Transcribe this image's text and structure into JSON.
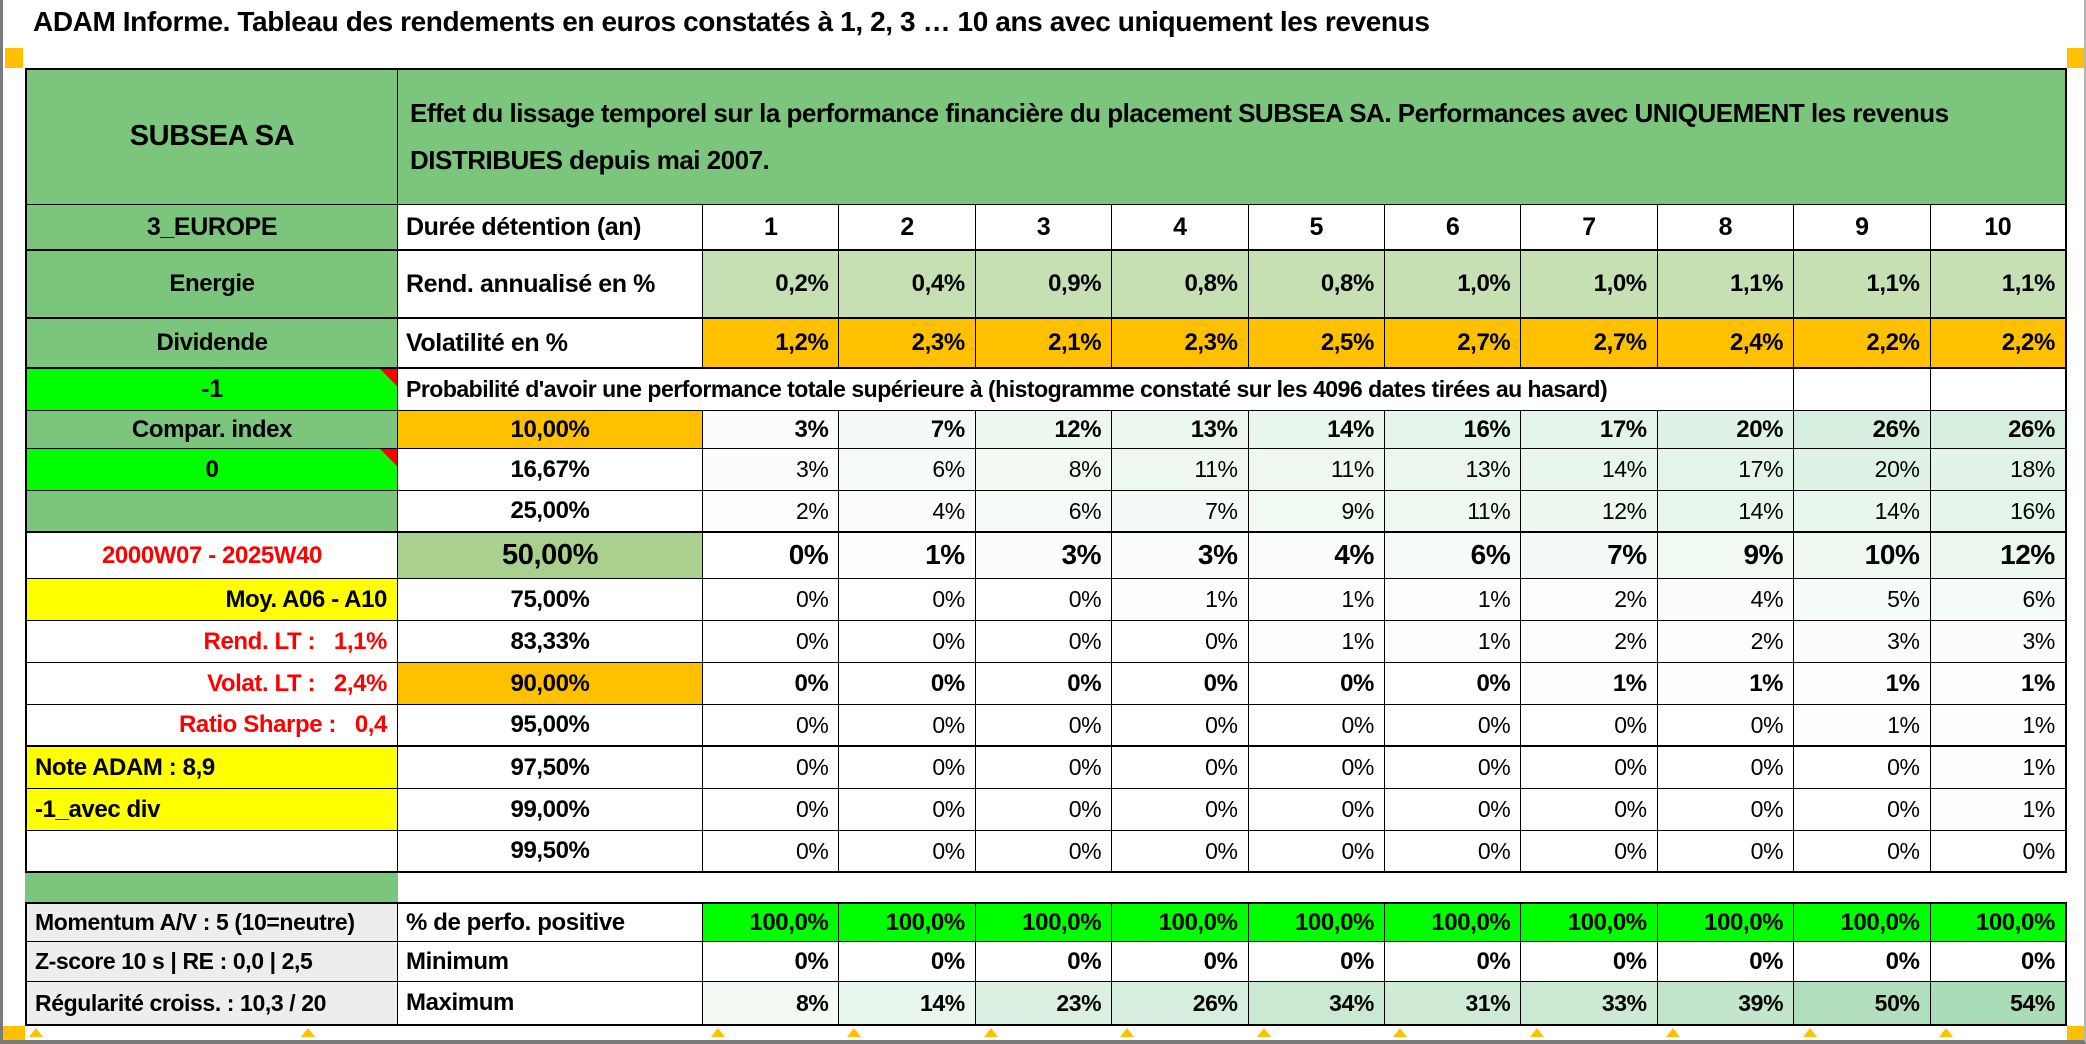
{
  "title": "ADAM Informe. Tableau des rendements en euros constatés à 1, 2, 3 … 10 ans avec uniquement les revenus",
  "entity": {
    "name": "SUBSEA SA",
    "description": "Effet du lissage temporel sur la performance financière du placement SUBSEA SA. Performances avec UNIQUEMENT les revenus\nDISTRIBUES depuis mai 2007."
  },
  "palette": {
    "green": "#7CC57C",
    "light_green": "#C6E0B4",
    "mid_green": "#A9D08E",
    "bright_green": "#00FF00",
    "orange": "#FFC000",
    "yellow": "#FFFF00",
    "gray_label": "#EDEDED",
    "red_text": "#FF0000",
    "scale_green": "#63BE7B"
  },
  "table": {
    "col_a_header": "3_EUROPE",
    "duration_label": "Durée détention (an)",
    "columns": [
      "1",
      "2",
      "3",
      "4",
      "5",
      "6",
      "7",
      "8",
      "9",
      "10"
    ],
    "rend_row": {
      "a": "Energie",
      "label": "Rend. annualisé en %",
      "values": [
        "0,2%",
        "0,4%",
        "0,9%",
        "0,8%",
        "0,8%",
        "1,0%",
        "1,0%",
        "1,1%",
        "1,1%",
        "1,1%"
      ]
    },
    "volat_row": {
      "a": "Dividende",
      "label": "Volatilité en %",
      "values": [
        "1,2%",
        "2,3%",
        "2,1%",
        "2,3%",
        "2,5%",
        "2,7%",
        "2,7%",
        "2,4%",
        "2,2%",
        "2,2%"
      ]
    },
    "prob_header_row": {
      "a": "-1",
      "text": "Probabilité d'avoir une performance totale supérieure à (histogramme constaté sur les 4096 dates tirées au hasard)"
    },
    "prob_rows": [
      {
        "a": "Compar. index",
        "a_style": "green",
        "t": "10,00%",
        "t_style": "orange",
        "bold": true,
        "values": [
          "3%",
          "7%",
          "12%",
          "13%",
          "14%",
          "16%",
          "17%",
          "20%",
          "26%",
          "26%"
        ]
      },
      {
        "a": "0",
        "a_style": "bright",
        "t": "16,67%",
        "t_style": "plain",
        "bold": false,
        "values": [
          "3%",
          "6%",
          "8%",
          "11%",
          "11%",
          "13%",
          "14%",
          "17%",
          "20%",
          "18%"
        ]
      },
      {
        "a": "",
        "a_style": "green",
        "t": "25,00%",
        "t_style": "plain",
        "bold": false,
        "thick": true,
        "values": [
          "2%",
          "4%",
          "6%",
          "7%",
          "9%",
          "11%",
          "12%",
          "14%",
          "14%",
          "16%"
        ]
      },
      {
        "a": "2000W07 - 2025W40",
        "a_style": "red-center",
        "t": "50,00%",
        "t_style": "mid",
        "bold": true,
        "big": true,
        "values": [
          "0%",
          "1%",
          "3%",
          "3%",
          "4%",
          "6%",
          "7%",
          "9%",
          "10%",
          "12%"
        ]
      },
      {
        "a": "Moy. A06 - A10",
        "a_style": "yellow-right",
        "t": "75,00%",
        "t_style": "plain",
        "bold": false,
        "values": [
          "0%",
          "0%",
          "0%",
          "1%",
          "1%",
          "1%",
          "2%",
          "4%",
          "5%",
          "6%"
        ]
      },
      {
        "a": "Rend. LT :   1,1%",
        "a_style": "red-right",
        "t": "83,33%",
        "t_style": "plain",
        "bold": false,
        "values": [
          "0%",
          "0%",
          "0%",
          "0%",
          "1%",
          "1%",
          "2%",
          "2%",
          "3%",
          "3%"
        ]
      },
      {
        "a": "Volat. LT :   2,4%",
        "a_style": "red-right",
        "t": "90,00%",
        "t_style": "orange",
        "bold": true,
        "values": [
          "0%",
          "0%",
          "0%",
          "0%",
          "0%",
          "0%",
          "1%",
          "1%",
          "1%",
          "1%"
        ]
      },
      {
        "a": "Ratio Sharpe :   0,4",
        "a_style": "red-right",
        "t": "95,00%",
        "t_style": "plain",
        "bold": false,
        "thick": true,
        "values": [
          "0%",
          "0%",
          "0%",
          "0%",
          "0%",
          "0%",
          "0%",
          "0%",
          "1%",
          "1%"
        ]
      },
      {
        "a": "Note ADAM : 8,9",
        "a_style": "yellow-left",
        "t": "97,50%",
        "t_style": "plain",
        "bold": false,
        "values": [
          "0%",
          "0%",
          "0%",
          "0%",
          "0%",
          "0%",
          "0%",
          "0%",
          "0%",
          "1%"
        ]
      },
      {
        "a": "-1_avec div",
        "a_style": "yellow-left",
        "t": "99,00%",
        "t_style": "plain",
        "bold": false,
        "values": [
          "0%",
          "0%",
          "0%",
          "0%",
          "0%",
          "0%",
          "0%",
          "0%",
          "0%",
          "1%"
        ]
      },
      {
        "a": "",
        "a_style": "plain",
        "t": "99,50%",
        "t_style": "plain",
        "bold": false,
        "values": [
          "0%",
          "0%",
          "0%",
          "0%",
          "0%",
          "0%",
          "0%",
          "0%",
          "0%",
          "0%"
        ]
      }
    ],
    "summary_rows": [
      {
        "a": "Momentum A/V : 5 (10=neutre)",
        "b": "% de perfo. positive",
        "style": "bright",
        "values": [
          "100,0%",
          "100,0%",
          "100,0%",
          "100,0%",
          "100,0%",
          "100,0%",
          "100,0%",
          "100,0%",
          "100,0%",
          "100,0%"
        ]
      },
      {
        "a": "Z-score 10 s | RE : 0,0 | 2,5",
        "b": "Minimum",
        "style": "plain",
        "values": [
          "0%",
          "0%",
          "0%",
          "0%",
          "0%",
          "0%",
          "0%",
          "0%",
          "0%",
          "0%"
        ]
      },
      {
        "a": "Régularité croiss. : 10,3 / 20",
        "b": "Maximum",
        "style": "scale",
        "values": [
          "8%",
          "14%",
          "23%",
          "26%",
          "34%",
          "31%",
          "33%",
          "39%",
          "50%",
          "54%"
        ]
      }
    ]
  }
}
